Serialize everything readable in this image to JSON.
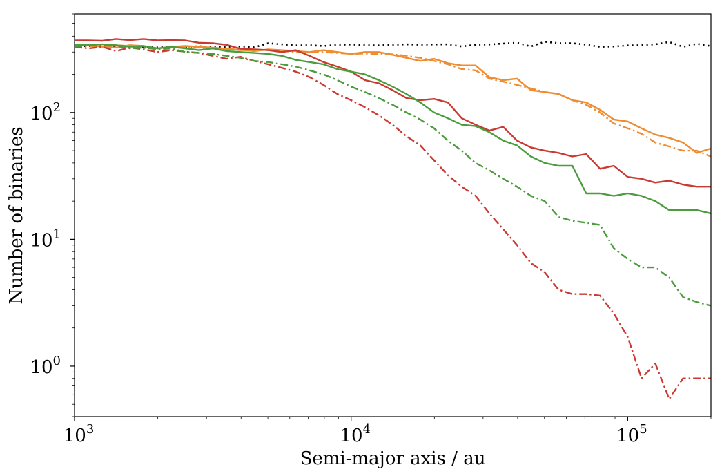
{
  "chart_data": {
    "type": "line",
    "title": "",
    "xlabel": "Semi-major axis / au",
    "ylabel": "Number of binaries",
    "xscale": "log",
    "yscale": "log",
    "xlim": [
      1000,
      200000
    ],
    "ylim": [
      0.4,
      600
    ],
    "x_ticks": [
      {
        "value": 1000,
        "base": "10",
        "exp": "3"
      },
      {
        "value": 10000,
        "base": "10",
        "exp": "4"
      },
      {
        "value": 100000,
        "base": "10",
        "exp": "5"
      }
    ],
    "y_ticks": [
      {
        "value": 1,
        "base": "10",
        "exp": "0"
      },
      {
        "value": 10,
        "base": "10",
        "exp": "1"
      },
      {
        "value": 100,
        "base": "10",
        "exp": "2"
      }
    ],
    "grid": false,
    "legend": "none",
    "x": [
      1000,
      1122,
      1259,
      1413,
      1585,
      1778,
      1995,
      2239,
      2512,
      2818,
      3162,
      3548,
      3981,
      4467,
      5012,
      5623,
      6310,
      7079,
      7943,
      8913,
      10000,
      11220,
      12589,
      14125,
      15849,
      17783,
      19953,
      22387,
      25119,
      28184,
      31623,
      35481,
      39811,
      44668,
      50119,
      56234,
      63096,
      70795,
      79433,
      89125,
      100000,
      112202,
      125893,
      141254,
      158489,
      177828,
      199526
    ],
    "series": [
      {
        "color": "#000000",
        "dash": "dotted",
        "values": [
          330,
          335,
          332,
          328,
          334,
          330,
          326,
          332,
          329,
          333,
          328,
          330,
          332,
          327,
          352,
          345,
          338,
          340,
          335,
          342,
          344,
          340,
          338,
          342,
          345,
          343,
          344,
          345,
          332,
          343,
          344,
          350,
          355,
          332,
          362,
          352,
          352,
          343,
          330,
          332,
          338,
          340,
          345,
          360,
          330,
          348,
          335
        ]
      },
      {
        "color": "#f08c30",
        "dash": "solid",
        "values": [
          335,
          340,
          330,
          325,
          340,
          335,
          320,
          330,
          335,
          330,
          325,
          318,
          312,
          305,
          315,
          310,
          305,
          300,
          310,
          300,
          290,
          300,
          300,
          285,
          270,
          255,
          265,
          245,
          235,
          235,
          190,
          180,
          185,
          150,
          145,
          140,
          125,
          120,
          105,
          88,
          85,
          75,
          67,
          63,
          58,
          48,
          52
        ]
      },
      {
        "color": "#f08c30",
        "dash": "dashdot",
        "values": [
          330,
          335,
          330,
          340,
          335,
          330,
          315,
          330,
          325,
          325,
          320,
          315,
          310,
          312,
          310,
          308,
          300,
          298,
          300,
          295,
          290,
          292,
          290,
          288,
          280,
          270,
          255,
          240,
          220,
          215,
          185,
          175,
          165,
          155,
          145,
          140,
          125,
          115,
          100,
          82,
          75,
          68,
          58,
          54,
          50,
          50,
          45
        ]
      },
      {
        "color": "#c83a32",
        "dash": "solid",
        "values": [
          370,
          370,
          368,
          380,
          372,
          380,
          370,
          372,
          370,
          355,
          352,
          342,
          318,
          315,
          310,
          300,
          310,
          280,
          250,
          230,
          210,
          180,
          170,
          150,
          130,
          125,
          128,
          120,
          90,
          80,
          72,
          77,
          60,
          53,
          50,
          48,
          45,
          47,
          36,
          38,
          31,
          30,
          28,
          29,
          27,
          26,
          26
        ]
      },
      {
        "color": "#c83a32",
        "dash": "dashdot",
        "values": [
          330,
          320,
          330,
          305,
          325,
          315,
          300,
          310,
          302,
          295,
          280,
          265,
          275,
          255,
          240,
          225,
          210,
          190,
          165,
          140,
          125,
          110,
          95,
          80,
          65,
          55,
          42,
          32,
          26,
          22,
          16,
          12,
          9,
          6.5,
          5.5,
          4,
          3.7,
          3.7,
          3.6,
          2.6,
          1.7,
          0.8,
          1.05,
          0.55,
          0.8,
          0.8,
          0.8
        ]
      },
      {
        "color": "#4a9c3c",
        "dash": "solid",
        "values": [
          340,
          342,
          345,
          340,
          330,
          335,
          320,
          330,
          320,
          310,
          320,
          305,
          300,
          295,
          290,
          280,
          260,
          250,
          240,
          220,
          210,
          200,
          180,
          160,
          140,
          120,
          100,
          90,
          80,
          78,
          70,
          60,
          55,
          45,
          40,
          38,
          38,
          23,
          23,
          22,
          23,
          22,
          20,
          17,
          17,
          17,
          16
        ]
      },
      {
        "color": "#4a9c3c",
        "dash": "dashdot",
        "values": [
          330,
          340,
          340,
          335,
          320,
          325,
          315,
          320,
          300,
          295,
          290,
          280,
          270,
          255,
          250,
          240,
          230,
          215,
          200,
          180,
          160,
          145,
          130,
          115,
          100,
          88,
          75,
          60,
          50,
          40,
          35,
          30,
          26,
          22,
          20,
          15,
          14,
          13.5,
          13,
          8.5,
          7,
          6,
          6,
          5,
          3.5,
          3.2,
          3
        ]
      }
    ]
  }
}
